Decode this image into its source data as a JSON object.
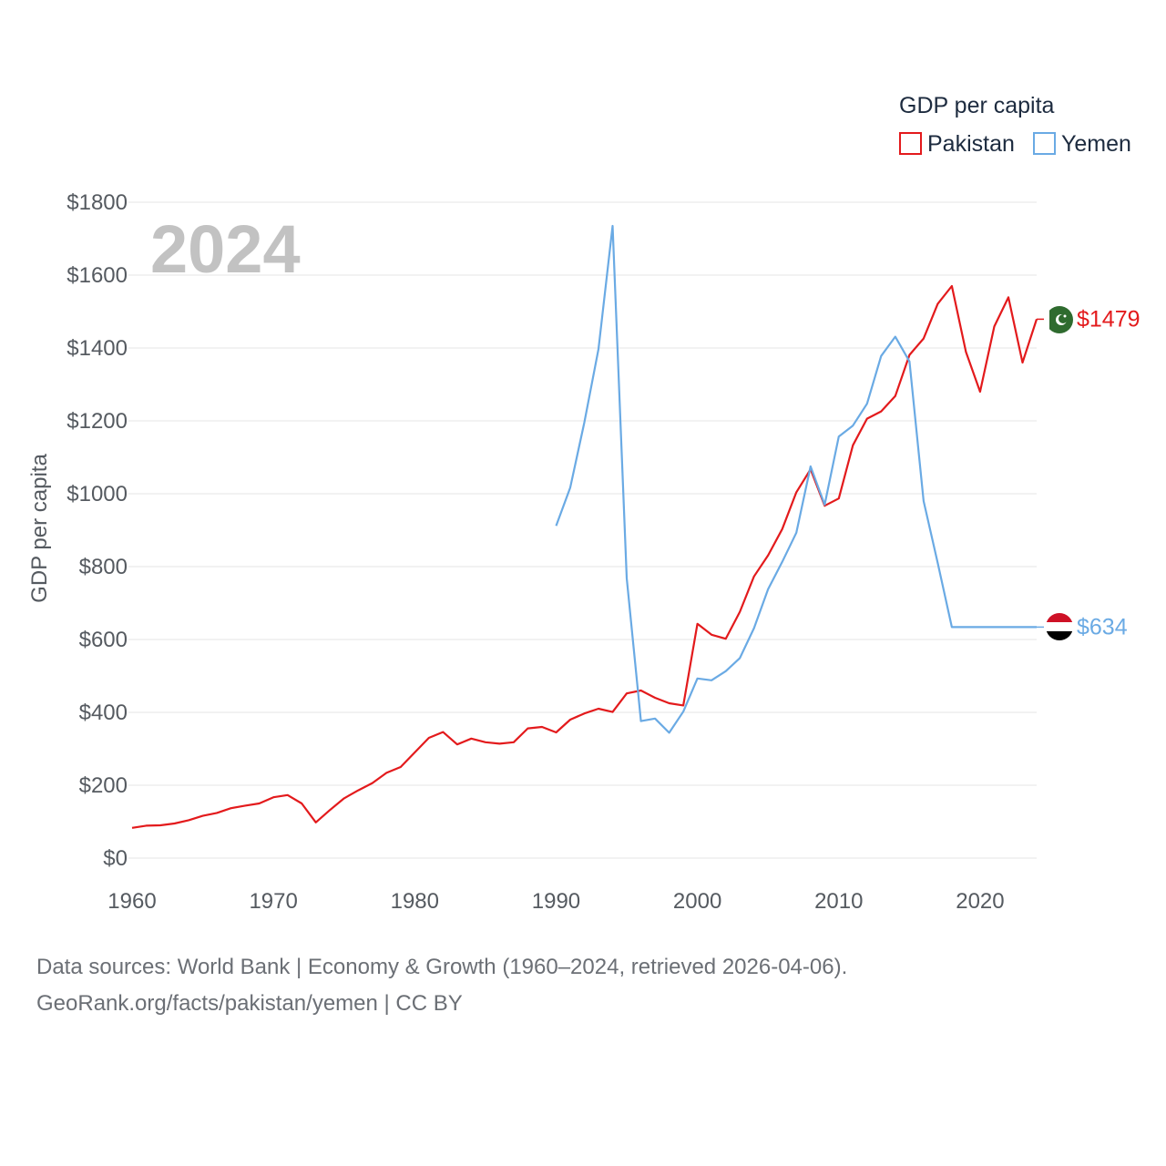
{
  "chart_data": {
    "type": "line",
    "title": "GDP per capita",
    "year_label": "2024",
    "ylabel": "GDP per capita",
    "xlabel": "",
    "xlim": [
      1960,
      2024
    ],
    "ylim": [
      0,
      1800
    ],
    "y_ticks": [
      0,
      200,
      400,
      600,
      800,
      1000,
      1200,
      1400,
      1600,
      1800
    ],
    "y_tick_labels": [
      "$0",
      "$200",
      "$400",
      "$600",
      "$800",
      "$1000",
      "$1200",
      "$1400",
      "$1600",
      "$1800"
    ],
    "x_ticks": [
      1960,
      1970,
      1980,
      1990,
      2000,
      2010,
      2020
    ],
    "x_tick_labels": [
      "1960",
      "1970",
      "1980",
      "1990",
      "2000",
      "2010",
      "2020"
    ],
    "grid": true,
    "legend_position": "top-right",
    "series": [
      {
        "name": "Pakistan",
        "color": "#e31a1c",
        "end_label": "$1479",
        "x": [
          1960,
          1961,
          1962,
          1963,
          1964,
          1965,
          1966,
          1967,
          1968,
          1969,
          1970,
          1971,
          1972,
          1973,
          1974,
          1975,
          1976,
          1977,
          1978,
          1979,
          1980,
          1981,
          1982,
          1983,
          1984,
          1985,
          1986,
          1987,
          1988,
          1989,
          1990,
          1991,
          1992,
          1993,
          1994,
          1995,
          1996,
          1997,
          1998,
          1999,
          2000,
          2001,
          2002,
          2003,
          2004,
          2005,
          2006,
          2007,
          2008,
          2009,
          2010,
          2011,
          2012,
          2013,
          2014,
          2015,
          2016,
          2017,
          2018,
          2019,
          2020,
          2021,
          2022,
          2023,
          2024
        ],
        "values": [
          83,
          89,
          90,
          95,
          104,
          116,
          124,
          137,
          144,
          150,
          167,
          173,
          150,
          98,
          132,
          164,
          186,
          206,
          234,
          250,
          290,
          330,
          346,
          312,
          328,
          318,
          314,
          318,
          356,
          360,
          345,
          380,
          397,
          410,
          401,
          452,
          460,
          440,
          425,
          419,
          643,
          613,
          602,
          676,
          773,
          831,
          903,
          1004,
          1067,
          967,
          987,
          1133,
          1206,
          1226,
          1268,
          1381,
          1426,
          1521,
          1570,
          1389,
          1280,
          1459,
          1539,
          1360,
          1479
        ]
      },
      {
        "name": "Yemen",
        "color": "#6aaae4",
        "end_label": "$634",
        "x": [
          1990,
          1991,
          1992,
          1993,
          1994,
          1995,
          1996,
          1997,
          1998,
          1999,
          2000,
          2001,
          2002,
          2003,
          2004,
          2005,
          2006,
          2007,
          2008,
          2009,
          2010,
          2011,
          2012,
          2013,
          2014,
          2015,
          2016,
          2017,
          2018,
          2019,
          2020,
          2021,
          2022,
          2023,
          2024
        ],
        "values": [
          912,
          1017,
          1196,
          1397,
          1735,
          768,
          376,
          383,
          344,
          402,
          493,
          488,
          513,
          549,
          631,
          738,
          813,
          893,
          1075,
          970,
          1157,
          1187,
          1247,
          1378,
          1431,
          1363,
          980,
          810,
          634,
          634,
          634,
          634,
          634,
          634,
          634
        ]
      }
    ]
  },
  "source": {
    "line1": "Data sources: World Bank | Economy & Growth (1960–2024, retrieved 2026-04-06).",
    "line2": "GeoRank.org/facts/pakistan/yemen | CC BY"
  },
  "flags": {
    "pakistan": "pakistan-flag-icon",
    "yemen": "yemen-flag-icon"
  }
}
